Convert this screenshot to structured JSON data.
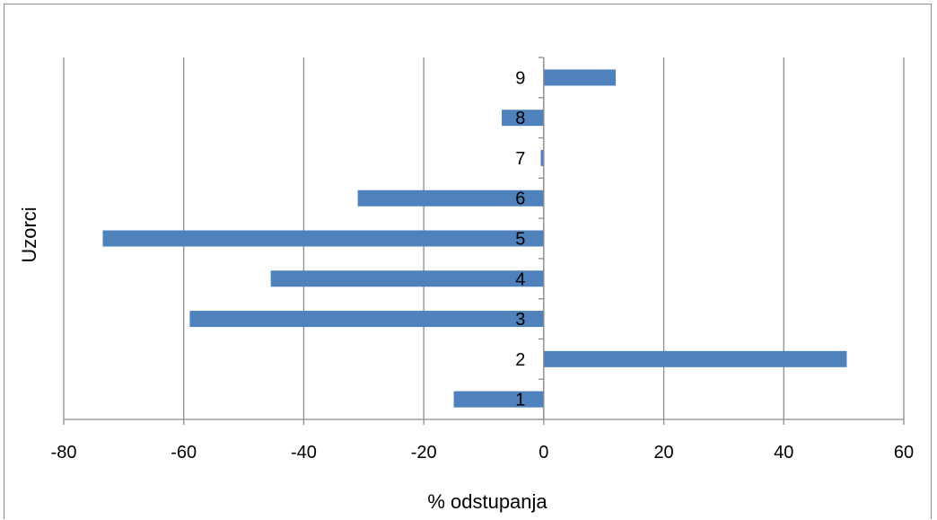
{
  "chart_data": {
    "type": "bar",
    "orientation": "horizontal",
    "categories": [
      "1",
      "2",
      "3",
      "4",
      "5",
      "6",
      "7",
      "8",
      "9"
    ],
    "values": [
      -15,
      50.5,
      -59,
      -45.5,
      -73.5,
      -31,
      -0.5,
      -7,
      12
    ],
    "title": "",
    "xlabel": "% odstupanja",
    "ylabel": "Uzorci",
    "xlim": [
      -80,
      60
    ],
    "x_ticks": [
      -80,
      -60,
      -40,
      -20,
      0,
      20,
      40,
      60
    ],
    "x_tick_labels": [
      "-80",
      "-60",
      "-40",
      "-20",
      "0",
      "20",
      "40",
      "60"
    ],
    "grid": "vertical major gridlines",
    "legend": "none",
    "bar_color": "#4f81bd",
    "gridline_color": "#8c8c8c"
  }
}
